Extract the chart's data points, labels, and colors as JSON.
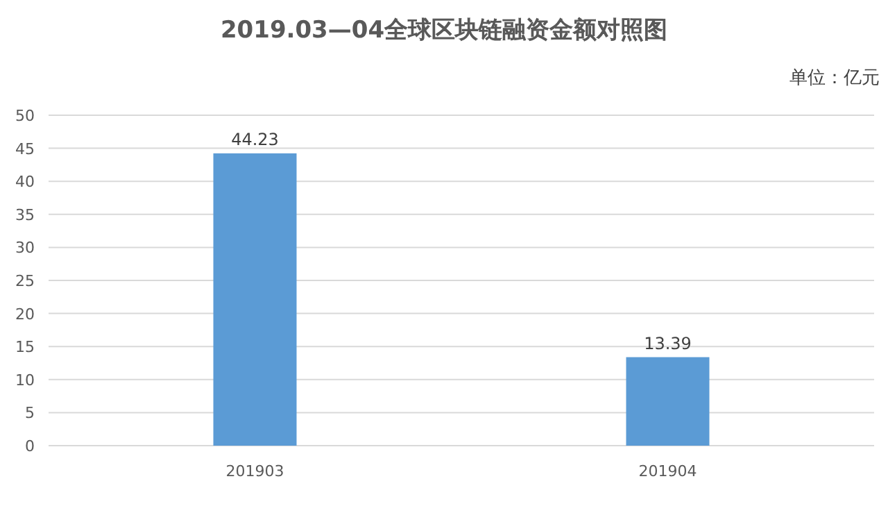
{
  "chart_data": {
    "type": "bar",
    "title": "2019.03—04全球区块链融资金额对照图",
    "annotations": [
      "单位：亿元"
    ],
    "categories": [
      "201903",
      "201904"
    ],
    "values": [
      44.23,
      13.39
    ],
    "color": "#5b9bd5",
    "ylim": [
      0,
      50
    ],
    "yticks": [
      0,
      5,
      10,
      15,
      20,
      25,
      30,
      35,
      40,
      45,
      50
    ],
    "grid": "y",
    "data_labels": true
  }
}
